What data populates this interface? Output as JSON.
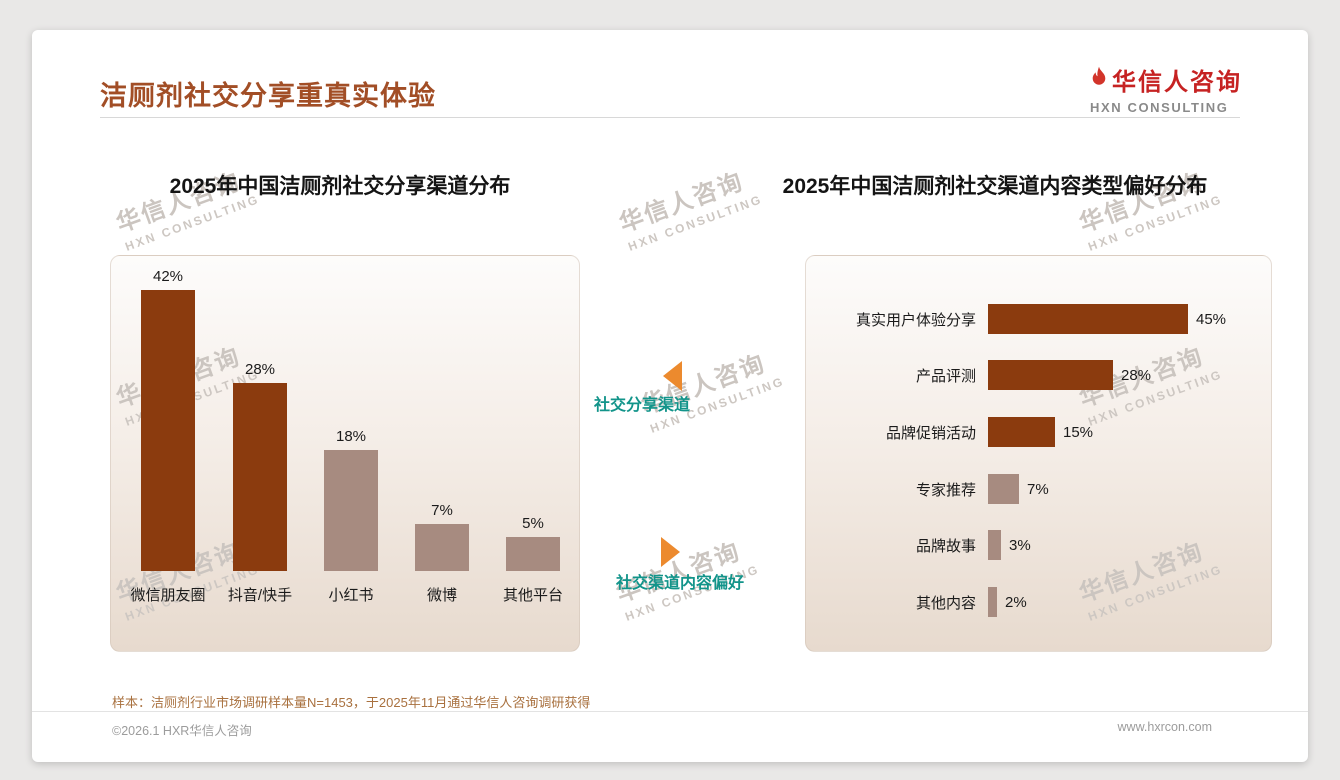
{
  "page": {
    "title": "洁厕剂社交分享重真实体验",
    "logo": {
      "cn": "华信人咨询",
      "en": "HXN CONSULTING"
    },
    "watermark": {
      "cn": "华信人咨询",
      "en": "HXN CONSULTING"
    },
    "sample_note": "样本：洁厕剂行业市场调研样本量N=1453，于2025年11月通过华信人咨询调研获得",
    "footer": {
      "left": "©2026.1 HXR华信人咨询",
      "right": "www.hxrcon.com"
    }
  },
  "annotations": {
    "top": {
      "label": "社交分享渠道",
      "arrow": "left"
    },
    "bottom": {
      "label": "社交渠道内容偏好",
      "arrow": "right"
    }
  },
  "colors": {
    "accent_dark": "#8B3B0E",
    "accent_light": "#A78B80",
    "title_brown": "#A24E26",
    "logo_red": "#C62222",
    "teal": "#12948A",
    "orange": "#EC8A2E",
    "note_brown": "#A9713F"
  },
  "chart_data": [
    {
      "type": "bar",
      "orientation": "vertical",
      "title": "2025年中国洁厕剂社交分享渠道分布",
      "categories": [
        "微信朋友圈",
        "抖音/快手",
        "小红书",
        "微博",
        "其他平台"
      ],
      "values": [
        42,
        28,
        18,
        7,
        5
      ],
      "value_suffix": "%",
      "ylim": [
        0,
        45
      ],
      "grid": false,
      "bar_colors": [
        "#8B3B0E",
        "#8B3B0E",
        "#A78B80",
        "#A78B80",
        "#A78B80"
      ]
    },
    {
      "type": "bar",
      "orientation": "horizontal",
      "title": "2025年中国洁厕剂社交渠道内容类型偏好分布",
      "categories": [
        "真实用户体验分享",
        "产品评测",
        "品牌促销活动",
        "专家推荐",
        "品牌故事",
        "其他内容"
      ],
      "values": [
        45,
        28,
        15,
        7,
        3,
        2
      ],
      "value_suffix": "%",
      "xlim": [
        0,
        50
      ],
      "grid": false,
      "bar_colors": [
        "#8B3B0E",
        "#8B3B0E",
        "#8B3B0E",
        "#A78B80",
        "#A78B80",
        "#A78B80"
      ]
    }
  ]
}
